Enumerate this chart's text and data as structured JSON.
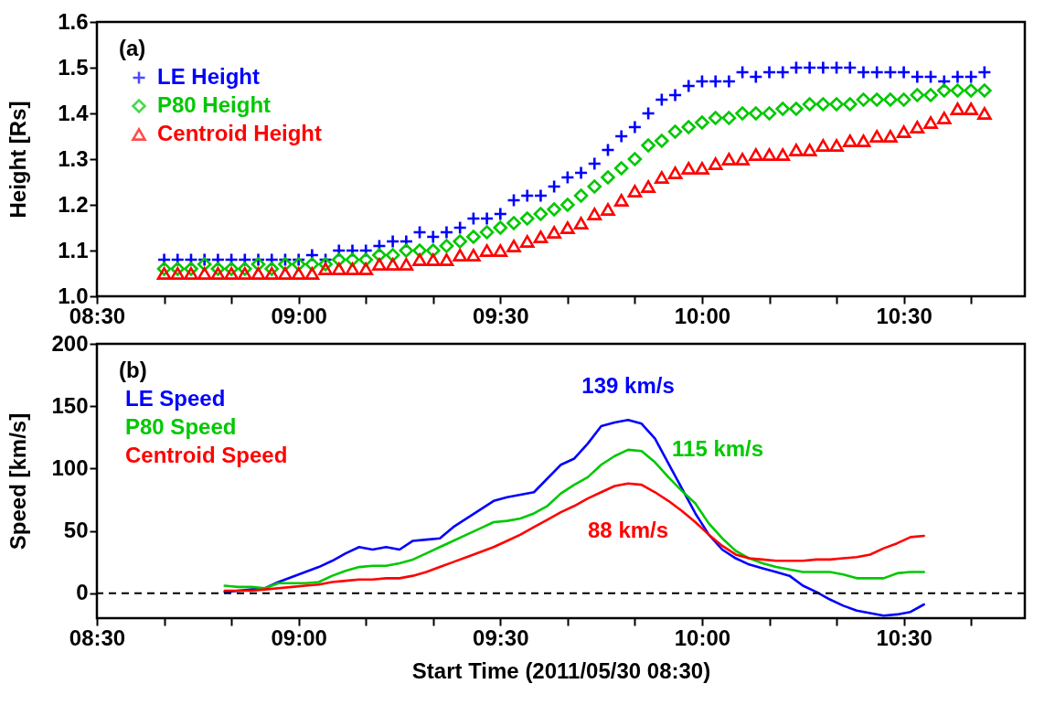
{
  "chart_data": [
    {
      "type": "scatter",
      "ylabel": "Height [Rs]",
      "annotations": [
        "(a)"
      ],
      "legend": "top left",
      "xlim": [
        "2011-05-30T08:30",
        "2011-05-30T10:48"
      ],
      "ylim": [
        1.0,
        1.6
      ],
      "xticks": [
        {
          "value": "2011-05-30T08:30",
          "label": "08:30"
        },
        {
          "value": "2011-05-30T08:40",
          "label": null
        },
        {
          "value": "2011-05-30T08:50",
          "label": null
        },
        {
          "value": "2011-05-30T09:00",
          "label": "09:00"
        },
        {
          "value": "2011-05-30T09:10",
          "label": null
        },
        {
          "value": "2011-05-30T09:20",
          "label": null
        },
        {
          "value": "2011-05-30T09:30",
          "label": "09:30"
        },
        {
          "value": "2011-05-30T09:40",
          "label": null
        },
        {
          "value": "2011-05-30T09:50",
          "label": null
        },
        {
          "value": "2011-05-30T10:00",
          "label": "10:00"
        },
        {
          "value": "2011-05-30T10:10",
          "label": null
        },
        {
          "value": "2011-05-30T10:20",
          "label": null
        },
        {
          "value": "2011-05-30T10:30",
          "label": "10:30"
        },
        {
          "value": "2011-05-30T10:40",
          "label": null
        }
      ],
      "yticks": [
        {
          "value": 1.0,
          "label": "1.0"
        },
        1.1,
        1.2,
        1.3,
        1.4,
        1.5,
        1.6
      ],
      "x": [
        "2011-05-30T08:40",
        "2011-05-30T08:42",
        "2011-05-30T08:44",
        "2011-05-30T08:46",
        "2011-05-30T08:48",
        "2011-05-30T08:50",
        "2011-05-30T08:52",
        "2011-05-30T08:54",
        "2011-05-30T08:56",
        "2011-05-30T08:58",
        "2011-05-30T09:00",
        "2011-05-30T09:02",
        "2011-05-30T09:04",
        "2011-05-30T09:06",
        "2011-05-30T09:08",
        "2011-05-30T09:10",
        "2011-05-30T09:12",
        "2011-05-30T09:14",
        "2011-05-30T09:16",
        "2011-05-30T09:18",
        "2011-05-30T09:20",
        "2011-05-30T09:22",
        "2011-05-30T09:24",
        "2011-05-30T09:26",
        "2011-05-30T09:28",
        "2011-05-30T09:30",
        "2011-05-30T09:32",
        "2011-05-30T09:34",
        "2011-05-30T09:36",
        "2011-05-30T09:38",
        "2011-05-30T09:40",
        "2011-05-30T09:42",
        "2011-05-30T09:44",
        "2011-05-30T09:46",
        "2011-05-30T09:48",
        "2011-05-30T09:50",
        "2011-05-30T09:52",
        "2011-05-30T09:54",
        "2011-05-30T09:56",
        "2011-05-30T09:58",
        "2011-05-30T10:00",
        "2011-05-30T10:02",
        "2011-05-30T10:04",
        "2011-05-30T10:06",
        "2011-05-30T10:08",
        "2011-05-30T10:10",
        "2011-05-30T10:12",
        "2011-05-30T10:14",
        "2011-05-30T10:16",
        "2011-05-30T10:18",
        "2011-05-30T10:20",
        "2011-05-30T10:22",
        "2011-05-30T10:24",
        "2011-05-30T10:26",
        "2011-05-30T10:28",
        "2011-05-30T10:30",
        "2011-05-30T10:32",
        "2011-05-30T10:34",
        "2011-05-30T10:36",
        "2011-05-30T10:38",
        "2011-05-30T10:40",
        "2011-05-30T10:42"
      ],
      "series": [
        {
          "name": "LE Height",
          "color": "#0000ff",
          "marker": "cross",
          "values": [
            1.08,
            1.08,
            1.08,
            1.08,
            1.08,
            1.08,
            1.08,
            1.08,
            1.08,
            1.08,
            1.08,
            1.09,
            1.08,
            1.1,
            1.1,
            1.1,
            1.11,
            1.12,
            1.12,
            1.14,
            1.13,
            1.14,
            1.15,
            1.17,
            1.17,
            1.18,
            1.21,
            1.22,
            1.22,
            1.24,
            1.26,
            1.27,
            1.29,
            1.32,
            1.35,
            1.37,
            1.4,
            1.43,
            1.44,
            1.46,
            1.47,
            1.47,
            1.47,
            1.49,
            1.48,
            1.49,
            1.49,
            1.5,
            1.5,
            1.5,
            1.5,
            1.5,
            1.49,
            1.49,
            1.49,
            1.49,
            1.48,
            1.48,
            1.47,
            1.48,
            1.48,
            1.49
          ]
        },
        {
          "name": "P80 Height",
          "color": "#00c800",
          "marker": "diamond",
          "values": [
            1.06,
            1.06,
            1.06,
            1.07,
            1.06,
            1.06,
            1.06,
            1.07,
            1.06,
            1.07,
            1.07,
            1.07,
            1.07,
            1.08,
            1.08,
            1.08,
            1.09,
            1.09,
            1.1,
            1.1,
            1.1,
            1.11,
            1.12,
            1.13,
            1.14,
            1.15,
            1.16,
            1.17,
            1.18,
            1.19,
            1.2,
            1.22,
            1.24,
            1.26,
            1.28,
            1.3,
            1.33,
            1.34,
            1.36,
            1.37,
            1.38,
            1.39,
            1.39,
            1.4,
            1.4,
            1.4,
            1.41,
            1.41,
            1.42,
            1.42,
            1.42,
            1.42,
            1.43,
            1.43,
            1.43,
            1.43,
            1.44,
            1.44,
            1.45,
            1.45,
            1.45,
            1.45
          ]
        },
        {
          "name": "Centroid Height",
          "color": "#ff0000",
          "marker": "triangle",
          "values": [
            1.05,
            1.05,
            1.05,
            1.05,
            1.05,
            1.05,
            1.05,
            1.05,
            1.05,
            1.05,
            1.05,
            1.05,
            1.06,
            1.06,
            1.06,
            1.06,
            1.07,
            1.07,
            1.07,
            1.08,
            1.08,
            1.08,
            1.09,
            1.09,
            1.1,
            1.1,
            1.11,
            1.12,
            1.13,
            1.14,
            1.15,
            1.16,
            1.18,
            1.19,
            1.21,
            1.23,
            1.24,
            1.26,
            1.27,
            1.28,
            1.28,
            1.29,
            1.3,
            1.3,
            1.31,
            1.31,
            1.31,
            1.32,
            1.32,
            1.33,
            1.33,
            1.34,
            1.34,
            1.35,
            1.35,
            1.36,
            1.37,
            1.38,
            1.39,
            1.41,
            1.41,
            1.4
          ]
        }
      ]
    },
    {
      "type": "line",
      "xlabel": "Start Time (2011/05/30 08:30)",
      "ylabel": "Speed [km/s]",
      "legend": "top left",
      "annotations": [
        "(b)",
        {
          "text": "139 km/s",
          "x": "2011-05-30T09:49",
          "y": 139
        },
        {
          "text": "115 km/s",
          "x": "2011-05-30T09:49",
          "y": 115
        },
        {
          "text": "88 km/s",
          "x": "2011-05-30T09:49",
          "y": 88
        }
      ],
      "xlim": [
        "2011-05-30T08:30",
        "2011-05-30T10:48"
      ],
      "ylim": [
        -20,
        200
      ],
      "xticks": [
        {
          "value": "2011-05-30T08:30",
          "label": "08:30"
        },
        {
          "value": "2011-05-30T08:40",
          "label": null
        },
        {
          "value": "2011-05-30T08:50",
          "label": null
        },
        {
          "value": "2011-05-30T09:00",
          "label": "09:00"
        },
        {
          "value": "2011-05-30T09:10",
          "label": null
        },
        {
          "value": "2011-05-30T09:20",
          "label": null
        },
        {
          "value": "2011-05-30T09:30",
          "label": "09:30"
        },
        {
          "value": "2011-05-30T09:40",
          "label": null
        },
        {
          "value": "2011-05-30T09:50",
          "label": null
        },
        {
          "value": "2011-05-30T10:00",
          "label": "10:00"
        },
        {
          "value": "2011-05-30T10:10",
          "label": null
        },
        {
          "value": "2011-05-30T10:20",
          "label": null
        },
        {
          "value": "2011-05-30T10:30",
          "label": "10:30"
        },
        {
          "value": "2011-05-30T10:40",
          "label": null
        }
      ],
      "yticks": [
        0,
        50,
        100,
        150,
        200
      ],
      "ref_lines": [
        {
          "axis": "y",
          "value": 0,
          "color": "#000000",
          "line_style": "dashed"
        }
      ],
      "x": [
        "2011-05-30T08:49",
        "2011-05-30T08:51",
        "2011-05-30T08:53",
        "2011-05-30T08:55",
        "2011-05-30T08:57",
        "2011-05-30T08:59",
        "2011-05-30T09:01",
        "2011-05-30T09:03",
        "2011-05-30T09:05",
        "2011-05-30T09:07",
        "2011-05-30T09:09",
        "2011-05-30T09:11",
        "2011-05-30T09:13",
        "2011-05-30T09:15",
        "2011-05-30T09:17",
        "2011-05-30T09:19",
        "2011-05-30T09:21",
        "2011-05-30T09:23",
        "2011-05-30T09:25",
        "2011-05-30T09:27",
        "2011-05-30T09:29",
        "2011-05-30T09:31",
        "2011-05-30T09:33",
        "2011-05-30T09:35",
        "2011-05-30T09:37",
        "2011-05-30T09:39",
        "2011-05-30T09:41",
        "2011-05-30T09:43",
        "2011-05-30T09:45",
        "2011-05-30T09:47",
        "2011-05-30T09:49",
        "2011-05-30T09:51",
        "2011-05-30T09:53",
        "2011-05-30T09:55",
        "2011-05-30T09:57",
        "2011-05-30T09:59",
        "2011-05-30T10:01",
        "2011-05-30T10:03",
        "2011-05-30T10:05",
        "2011-05-30T10:07",
        "2011-05-30T10:09",
        "2011-05-30T10:11",
        "2011-05-30T10:13",
        "2011-05-30T10:15",
        "2011-05-30T10:17",
        "2011-05-30T10:19",
        "2011-05-30T10:21",
        "2011-05-30T10:23",
        "2011-05-30T10:25",
        "2011-05-30T10:27",
        "2011-05-30T10:29",
        "2011-05-30T10:31",
        "2011-05-30T10:33"
      ],
      "series": [
        {
          "name": "LE Speed",
          "color": "#0000ff",
          "values": [
            1,
            2,
            3,
            4,
            9,
            13,
            17,
            21,
            26,
            32,
            37,
            35,
            37,
            35,
            42,
            43,
            44,
            53,
            60,
            67,
            74,
            77,
            79,
            81,
            92,
            103,
            108,
            120,
            134,
            137,
            139,
            136,
            124,
            104,
            84,
            64,
            47,
            35,
            28,
            23,
            20,
            17,
            14,
            6,
            1,
            -5,
            -10,
            -14,
            -16,
            -18,
            -17,
            -15,
            -9
          ]
        },
        {
          "name": "P80 Speed",
          "color": "#00c800",
          "values": [
            6,
            5,
            5,
            4,
            8,
            8,
            8,
            9,
            14,
            18,
            21,
            22,
            22,
            24,
            27,
            32,
            37,
            42,
            47,
            52,
            57,
            58,
            60,
            64,
            70,
            80,
            87,
            93,
            103,
            110,
            115,
            114,
            105,
            93,
            82,
            72,
            56,
            44,
            34,
            28,
            24,
            21,
            19,
            17,
            17,
            17,
            15,
            12,
            12,
            12,
            16,
            17,
            17
          ]
        },
        {
          "name": "Centroid Speed",
          "color": "#ff0000",
          "values": [
            2,
            2,
            2,
            3,
            4,
            5,
            6,
            7,
            9,
            10,
            11,
            11,
            12,
            12,
            14,
            17,
            21,
            25,
            29,
            33,
            37,
            42,
            47,
            53,
            59,
            65,
            70,
            76,
            81,
            86,
            88,
            87,
            81,
            74,
            66,
            57,
            47,
            38,
            31,
            28,
            27,
            26,
            26,
            26,
            27,
            27,
            28,
            29,
            31,
            36,
            40,
            45,
            46
          ]
        }
      ]
    }
  ]
}
